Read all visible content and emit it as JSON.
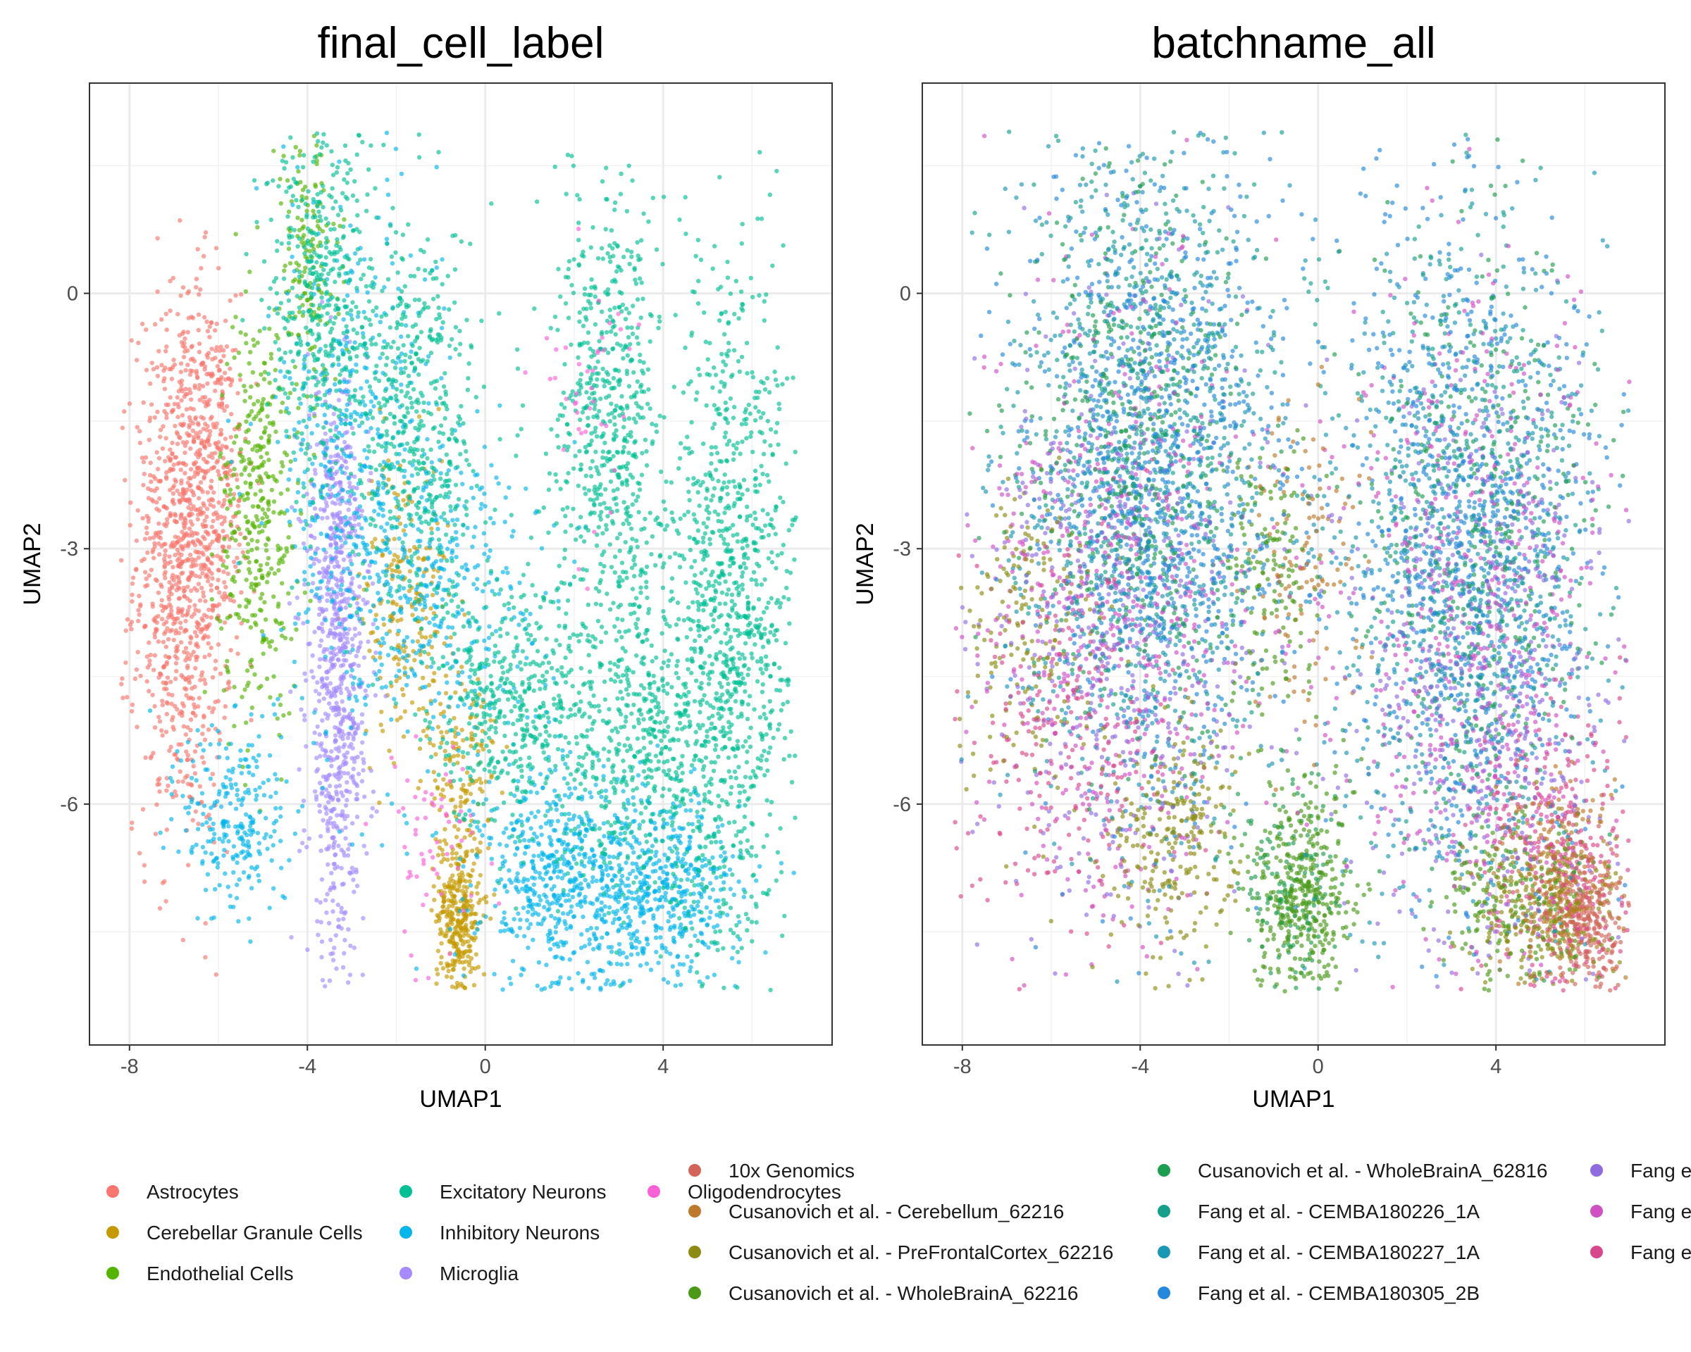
{
  "chart_data": [
    {
      "type": "scatter",
      "title": "final_cell_label",
      "xlabel": "UMAP1",
      "ylabel": "UMAP2",
      "x_ticks": [
        "-8",
        "-4",
        "0",
        "4"
      ],
      "y_ticks": [
        "0",
        "-3",
        "-6"
      ],
      "xlim": [
        -8.9,
        7.8
      ],
      "ylim": [
        -8.83,
        2.47
      ],
      "grid": true,
      "legend_position": "bottom",
      "series": [
        {
          "name": "Astrocytes",
          "color": "#F8766D"
        },
        {
          "name": "Cerebellar Granule Cells",
          "color": "#C49A00"
        },
        {
          "name": "Endothelial Cells",
          "color": "#53B400"
        },
        {
          "name": "Excitatory Neurons",
          "color": "#00C094"
        },
        {
          "name": "Inhibitory Neurons",
          "color": "#00B6EB"
        },
        {
          "name": "Microglia",
          "color": "#A58AFF"
        },
        {
          "name": "Oligodendrocytes",
          "color": "#FB61D7"
        }
      ]
    },
    {
      "type": "scatter",
      "title": "batchname_all",
      "xlabel": "UMAP1",
      "ylabel": "UMAP2",
      "x_ticks": [
        "-8",
        "-4",
        "0",
        "4"
      ],
      "y_ticks": [
        "0",
        "-3",
        "-6"
      ],
      "xlim": [
        -8.9,
        7.8
      ],
      "ylim": [
        -8.83,
        2.47
      ],
      "grid": true,
      "legend_position": "bottom",
      "series": [
        {
          "name": "10x Genomics",
          "color": "#D2645A"
        },
        {
          "name": "Cusanovich et al. - Cerebellum_62216",
          "color": "#BC7A2A"
        },
        {
          "name": "Cusanovich et al. - PreFrontalCortex_62216",
          "color": "#8C8C12"
        },
        {
          "name": "Cusanovich et al. - WholeBrainA_62216",
          "color": "#4A9A18"
        },
        {
          "name": "Cusanovich et al. - WholeBrainA_62816",
          "color": "#1E9E50"
        },
        {
          "name": "Fang et al. - CEMBA180226_1A",
          "color": "#16A08C"
        },
        {
          "name": "Fang et al. - CEMBA180227_1A",
          "color": "#1A97B4"
        },
        {
          "name": "Fang et al. - CEMBA180305_2B",
          "color": "#2488DC"
        },
        {
          "name": "Fang e",
          "color": "#8F6BE0"
        },
        {
          "name": "Fang e",
          "color": "#D14FC4"
        },
        {
          "name": "Fang e",
          "color": "#D8468C"
        }
      ]
    }
  ]
}
